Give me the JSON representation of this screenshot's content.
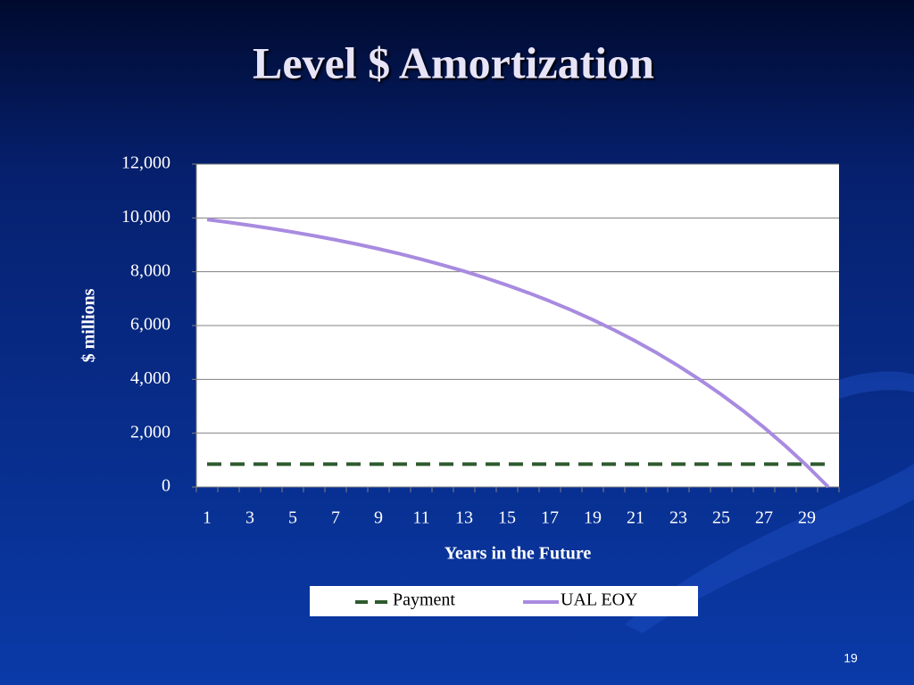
{
  "page_number": "19",
  "chart_data": {
    "type": "line",
    "title": "Level $ Amortization",
    "x_label": "Years in the Future",
    "y_label": "$ millions",
    "categories": [
      "1",
      null,
      "3",
      null,
      "5",
      null,
      "7",
      null,
      "9",
      null,
      "11",
      null,
      "13",
      null,
      "15",
      null,
      "17",
      null,
      "19",
      null,
      "21",
      null,
      "23",
      null,
      "25",
      null,
      "27",
      null,
      "29",
      null
    ],
    "series": [
      {
        "name": "Payment",
        "color": "#2e5a2e",
        "dash": true,
        "values": [
          850,
          850,
          850,
          850,
          850,
          850,
          850,
          850,
          850,
          850,
          850,
          850,
          850,
          850,
          850,
          850,
          850,
          850,
          850,
          850,
          850,
          850,
          850,
          850,
          850,
          850,
          850,
          850,
          850,
          850
        ]
      },
      {
        "name": "UAL EOY",
        "color": "#a88be0",
        "dash": false,
        "values": [
          9941,
          9837,
          9725,
          9604,
          9475,
          9335,
          9186,
          9025,
          8851,
          8665,
          8465,
          8249,
          8019,
          7770,
          7502,
          7216,
          6906,
          6574,
          6217,
          5834,
          5422,
          4979,
          4502,
          3989,
          3438,
          2847,
          2211,
          1525,
          791,
          0
        ]
      }
    ],
    "ylim": [
      0,
      12000
    ],
    "yticks": [
      0,
      {
        "value": 2000,
        "label": "2,000"
      },
      {
        "value": 4000,
        "label": "4,000"
      },
      {
        "value": 6000,
        "label": "6,000"
      },
      {
        "value": 8000,
        "label": "8,000"
      },
      {
        "value": 10000,
        "label": "10,000"
      },
      {
        "value": 12000,
        "label": "12,000"
      }
    ],
    "grid": true,
    "legend": "bottom"
  }
}
